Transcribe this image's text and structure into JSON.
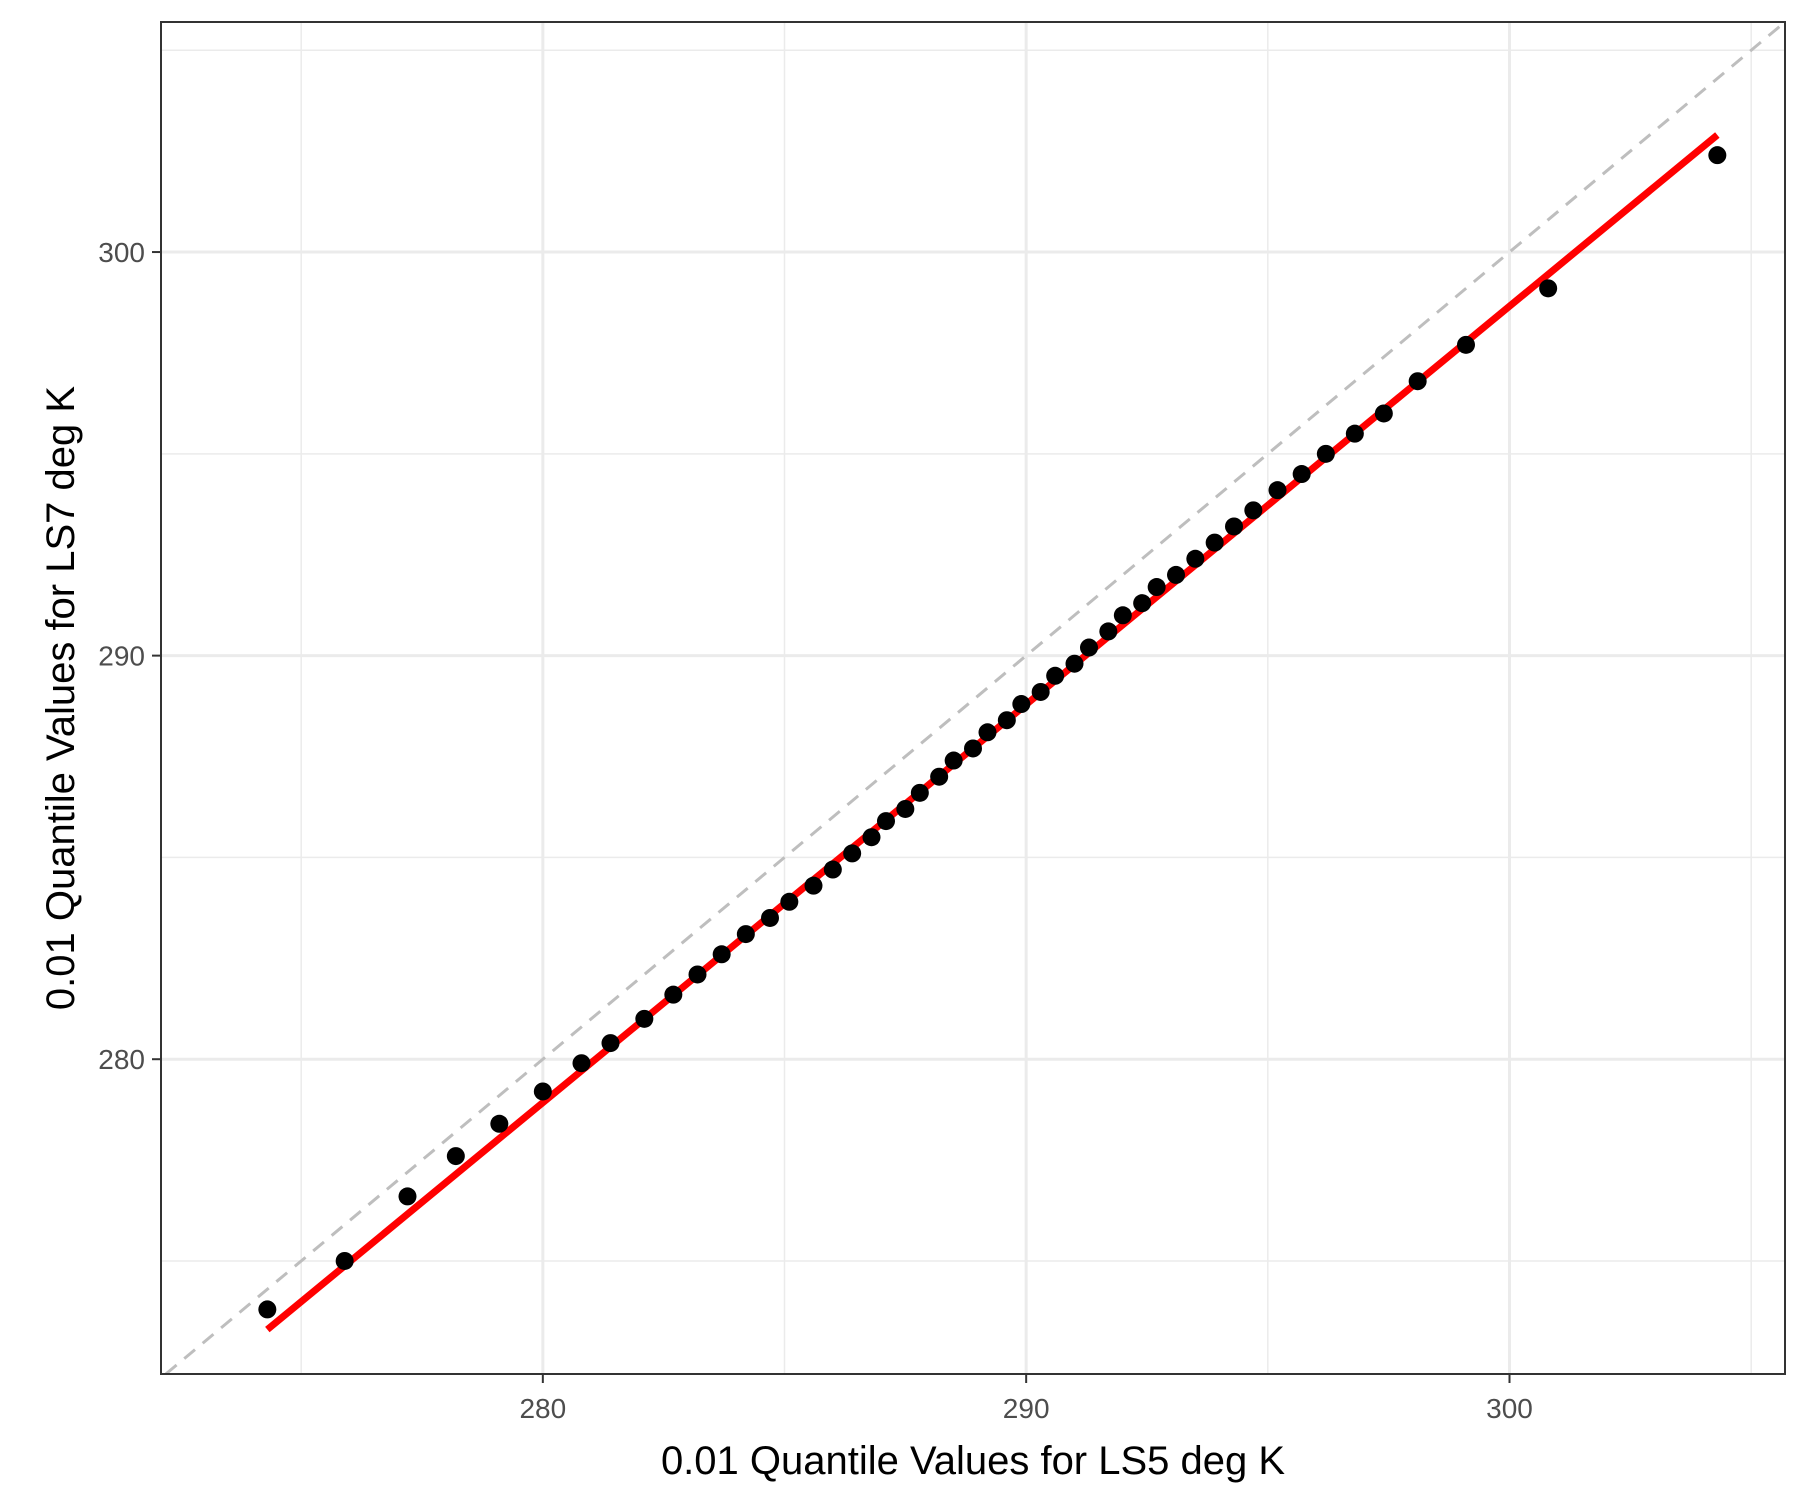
{
  "chart_data": {
    "type": "scatter",
    "title": "",
    "xlabel": "0.01 Quantile Values for LS5 deg K",
    "ylabel": "0.01 Quantile Values for LS7 deg K",
    "xlim": [
      272.1,
      305.7
    ],
    "ylim": [
      272.2,
      305.7
    ],
    "x_ticks": [
      280,
      290,
      300
    ],
    "x_tick_labels": [
      "280",
      "290",
      "300"
    ],
    "y_ticks": [
      280,
      290,
      300
    ],
    "y_tick_labels": [
      "280",
      "290",
      "300"
    ],
    "x_minor": [
      275,
      285,
      295,
      305
    ],
    "y_minor": [
      275,
      285,
      295,
      305
    ],
    "grid": true,
    "legend": "none",
    "points": {
      "x": [
        274.3,
        275.9,
        277.2,
        278.2,
        279.1,
        280.0,
        280.8,
        281.4,
        282.1,
        282.7,
        283.2,
        283.7,
        284.2,
        284.7,
        285.1,
        285.6,
        286.0,
        286.4,
        286.8,
        287.1,
        287.5,
        287.8,
        288.2,
        288.5,
        288.9,
        289.2,
        289.6,
        289.9,
        290.3,
        290.6,
        291.0,
        291.3,
        291.7,
        292.0,
        292.4,
        292.7,
        293.1,
        293.5,
        293.9,
        294.3,
        294.7,
        295.2,
        295.7,
        296.2,
        296.8,
        297.4,
        298.1,
        299.1,
        300.8,
        304.3
      ],
      "y": [
        273.8,
        275.0,
        276.6,
        277.6,
        278.4,
        279.2,
        279.9,
        280.4,
        281.0,
        281.6,
        282.1,
        282.6,
        283.1,
        283.5,
        283.9,
        284.3,
        284.7,
        285.1,
        285.5,
        285.9,
        286.2,
        286.6,
        287.0,
        287.4,
        287.7,
        288.1,
        288.4,
        288.8,
        289.1,
        289.5,
        289.8,
        290.2,
        290.6,
        291.0,
        291.3,
        291.7,
        292.0,
        292.4,
        292.8,
        293.2,
        293.6,
        294.1,
        294.5,
        295.0,
        295.5,
        296.0,
        296.8,
        297.7,
        299.1,
        302.4
      ],
      "color": "#000000"
    },
    "fit_line": {
      "x": [
        274.3,
        304.3
      ],
      "y": [
        273.3,
        302.9
      ],
      "color": "#ff0000"
    },
    "reference_line": {
      "type": "identity",
      "style": "dashed",
      "color": "#bebebe"
    },
    "colors": {
      "panel_border": "#333333",
      "grid": "#ebebeb",
      "background": "#ffffff"
    }
  }
}
